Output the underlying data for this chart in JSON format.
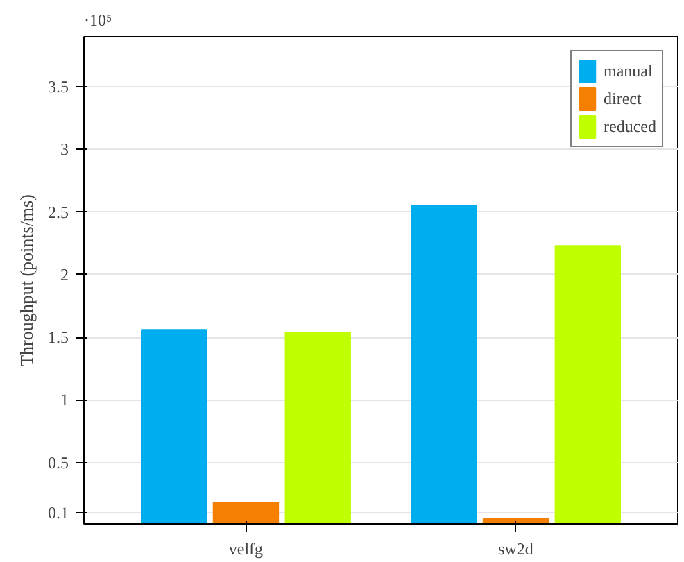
{
  "chart_data": {
    "type": "bar",
    "ylabel": "Throughput (points/ms)",
    "categories": [
      "velfg",
      "sw2d"
    ],
    "series": [
      {
        "name": "manual",
        "color": "#00adef",
        "values": [
          1.56,
          2.55
        ]
      },
      {
        "name": "direct",
        "color": "#f47f00",
        "values": [
          0.18,
          0.05
        ]
      },
      {
        "name": "reduced",
        "color": "#bfff00",
        "values": [
          1.54,
          2.23
        ]
      }
    ],
    "ylim": [
      0.01,
      3.9
    ],
    "yticks": [
      0.1,
      0.5,
      1,
      1.5,
      2,
      2.5,
      3,
      3.5
    ],
    "annotations": [
      "·10⁵"
    ],
    "grid": "y",
    "legend": "top right"
  }
}
